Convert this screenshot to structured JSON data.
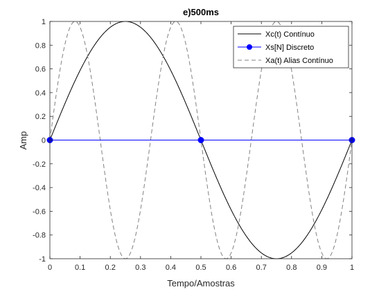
{
  "figure": {
    "background": "#ffffff"
  },
  "chart_data": {
    "type": "line",
    "title": "e)500ms",
    "xlabel": "Tempo/Amostras",
    "ylabel": "Amp",
    "xlim": [
      0,
      1
    ],
    "ylim": [
      -1,
      1
    ],
    "xticks": [
      "0",
      "0.1",
      "0.2",
      "0.3",
      "0.4",
      "0.5",
      "0.6",
      "0.7",
      "0.8",
      "0.9",
      "1"
    ],
    "yticks": [
      "-1",
      "-0.8",
      "-0.6",
      "-0.4",
      "-0.2",
      "0",
      "0.2",
      "0.4",
      "0.6",
      "0.8",
      "1"
    ],
    "grid": false,
    "legend_position": "top-right",
    "series": [
      {
        "name": "Xc(t) Contínuo",
        "style": "solid",
        "color": "#000000",
        "function": "sin(2*pi*1*t)",
        "frequency_hz": 1
      },
      {
        "name": "Xs[N] Discreto",
        "style": "markers",
        "color": "#0000ff",
        "x": [
          0,
          0.5,
          1
        ],
        "y": [
          0,
          0,
          0
        ]
      },
      {
        "name": "Xa(t) Alias Contínuo",
        "style": "dashed",
        "color": "#808080",
        "function": "sin(2*pi*3*t)",
        "frequency_hz": 3
      }
    ]
  }
}
